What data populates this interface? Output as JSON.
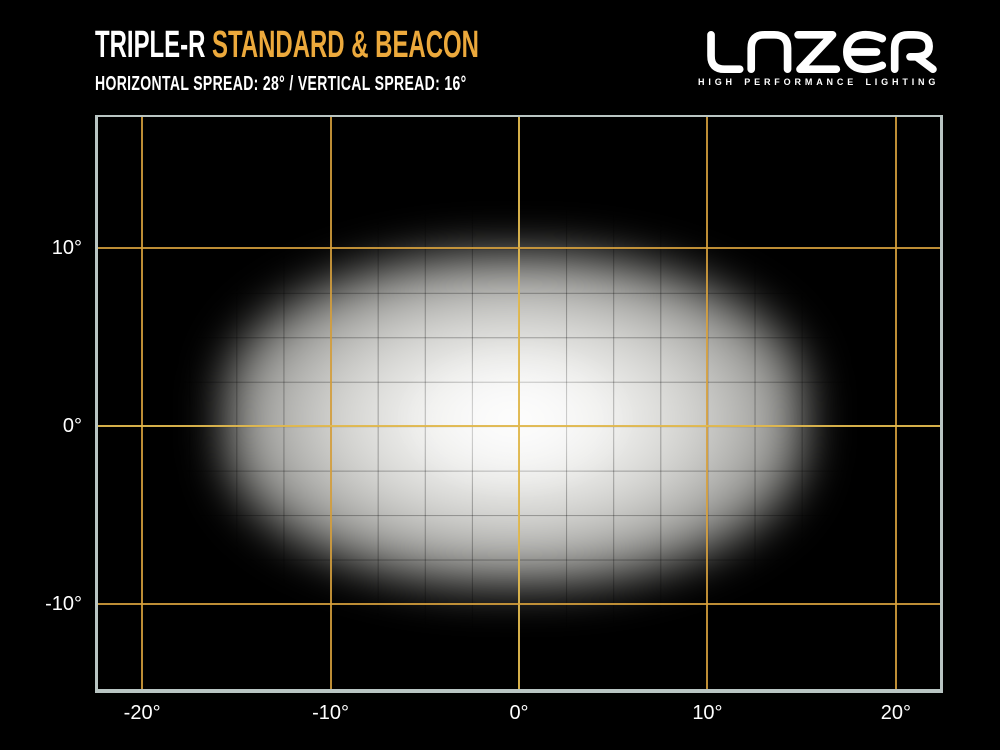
{
  "header": {
    "title_white": "TRIPLE-R",
    "title_accent": "STANDARD & BEACON",
    "subtitle": "HORIZONTAL SPREAD: 28° / VERTICAL SPREAD:  16°",
    "accent_color": "#ECA93C",
    "text_color": "#FFFFFF"
  },
  "logo": {
    "name": "LAZER",
    "tagline": "HIGH PERFORMANCE LIGHTING",
    "color": "#FFFFFF"
  },
  "chart_data": {
    "type": "heatmap",
    "title": "TRIPLE-R STANDARD & BEACON beam pattern",
    "xlim": [
      -22.5,
      22.5
    ],
    "ylim": [
      -15,
      17.5
    ],
    "x_ticks": [
      {
        "value": -20,
        "label": "-20°"
      },
      {
        "value": -10,
        "label": "-10°"
      },
      {
        "value": 0,
        "label": "0°"
      },
      {
        "value": 10,
        "label": "10°"
      },
      {
        "value": 20,
        "label": "20°"
      }
    ],
    "y_ticks": [
      {
        "value": 10,
        "label": "10°"
      },
      {
        "value": 0,
        "label": "0°"
      },
      {
        "value": -10,
        "label": "-10°"
      }
    ],
    "minor_grid_step_deg": 2.5,
    "grid_on": true,
    "major_grid_color": "#D7A03C",
    "center_line_color": "#E0B84E",
    "minor_grid_line_alpha": 0.3,
    "axis_border_color": "#B9C5C3",
    "background_color": "#000000",
    "beam": {
      "horizontal_spread_deg": 28,
      "vertical_spread_deg": 16,
      "center_x_deg": -0.2,
      "center_y_deg": 0.4,
      "half_width_deg": 15.5,
      "half_height_deg": 9.5,
      "peak_color": "#FFFFFF"
    }
  }
}
